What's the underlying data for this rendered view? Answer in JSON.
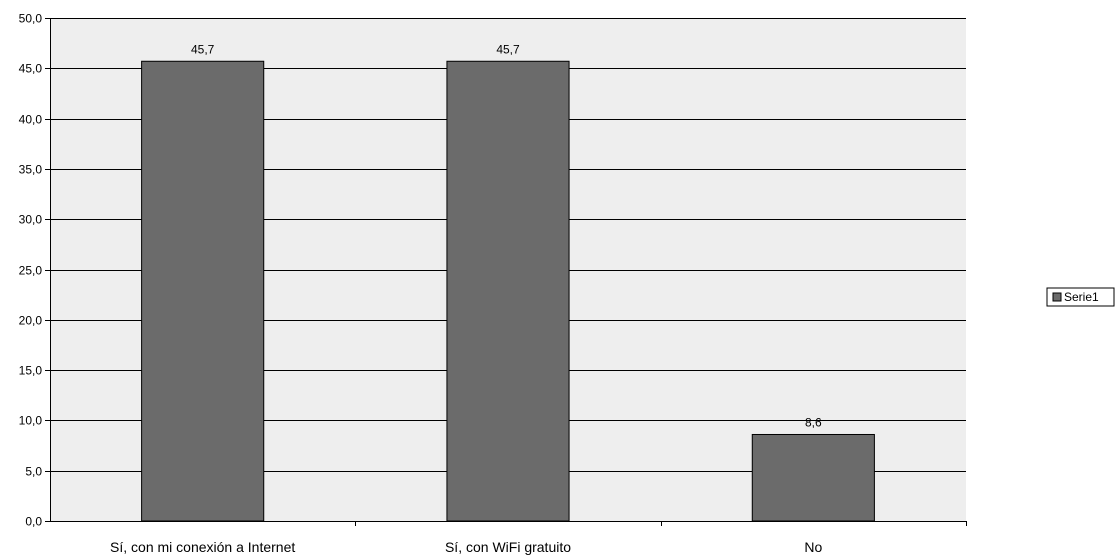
{
  "chart_data": {
    "type": "bar",
    "categories": [
      "Sí, con mi conexión a Internet",
      "Sí, con WiFi gratuito",
      "No"
    ],
    "series": [
      {
        "name": "Serie1",
        "values": [
          45.7,
          45.7,
          8.6
        ]
      }
    ],
    "data_labels": [
      "45,7",
      "45,7",
      "8,6"
    ],
    "y_ticks": [
      "0,0",
      "5,0",
      "10,0",
      "15,0",
      "20,0",
      "25,0",
      "30,0",
      "35,0",
      "40,0",
      "45,0",
      "50,0"
    ],
    "ylim": [
      0,
      50
    ],
    "y_step": 5,
    "grid": true,
    "legend_position": "right",
    "colors": {
      "bar": "#6b6b6b",
      "plot_background": "#eeeeee",
      "gridline": "#000000"
    }
  }
}
